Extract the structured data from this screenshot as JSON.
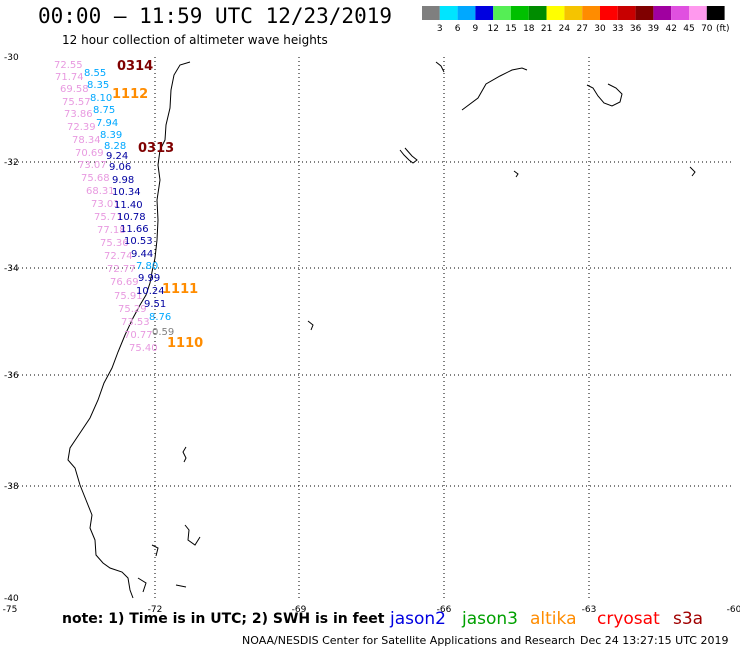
{
  "title": "00:00 – 11:59 UTC 12/23/2019",
  "subtitle": "12 hour collection of altimeter wave heights",
  "legend": {
    "unit": "(ft)",
    "bins": [
      {
        "label": "3",
        "color": "#7f7f7f"
      },
      {
        "label": "6",
        "color": "#00e5ff"
      },
      {
        "label": "9",
        "color": "#00a8ff"
      },
      {
        "label": "12",
        "color": "#0000e0"
      },
      {
        "label": "15",
        "color": "#55ee55"
      },
      {
        "label": "18",
        "color": "#00c000"
      },
      {
        "label": "21",
        "color": "#008c00"
      },
      {
        "label": "24",
        "color": "#ffff00"
      },
      {
        "label": "27",
        "color": "#f5c400"
      },
      {
        "label": "30",
        "color": "#ff8c00"
      },
      {
        "label": "33",
        "color": "#ff0000"
      },
      {
        "label": "36",
        "color": "#c80000"
      },
      {
        "label": "39",
        "color": "#7f0000"
      },
      {
        "label": "42",
        "color": "#a000a0"
      },
      {
        "label": "45",
        "color": "#e050e0"
      },
      {
        "label": "70",
        "color": "#ff99ee"
      },
      {
        "label": "",
        "color": "#000000"
      }
    ]
  },
  "axes": {
    "lat_labels": [
      "-30",
      "-32",
      "-34",
      "-36",
      "-38",
      "-40"
    ],
    "lon_labels": [
      "-75",
      "-72",
      "-69",
      "-66",
      "-63",
      "-60"
    ]
  },
  "observations": [
    {
      "value": "72.55",
      "color": "#e89ae0"
    },
    {
      "value": "71.74",
      "color": "#e89ae0"
    },
    {
      "value": "69.58",
      "color": "#e89ae0"
    },
    {
      "value": "75.57",
      "color": "#e89ae0"
    },
    {
      "value": "73.86",
      "color": "#e89ae0"
    },
    {
      "value": "72.39",
      "color": "#e89ae0"
    },
    {
      "value": "78.34",
      "color": "#e89ae0"
    },
    {
      "value": "70.69",
      "color": "#e89ae0"
    },
    {
      "value": "73.07",
      "color": "#e89ae0"
    },
    {
      "value": "75.68",
      "color": "#e89ae0"
    },
    {
      "value": "68.31",
      "color": "#e89ae0"
    },
    {
      "value": "73.01",
      "color": "#e89ae0"
    },
    {
      "value": "75.71",
      "color": "#e89ae0"
    },
    {
      "value": "77.18",
      "color": "#e89ae0"
    },
    {
      "value": "75.36",
      "color": "#e89ae0"
    },
    {
      "value": "72.74",
      "color": "#e89ae0"
    },
    {
      "value": "72.77",
      "color": "#e89ae0"
    },
    {
      "value": "76.69",
      "color": "#e89ae0"
    },
    {
      "value": "75.91",
      "color": "#e89ae0"
    },
    {
      "value": "75.29",
      "color": "#e89ae0"
    },
    {
      "value": "73.53",
      "color": "#e89ae0"
    },
    {
      "value": "70.77",
      "color": "#e89ae0"
    },
    {
      "value": "75.40",
      "color": "#e89ae0"
    },
    {
      "value": "8.55",
      "color": "#00a8ff"
    },
    {
      "value": "8.35",
      "color": "#00a8ff"
    },
    {
      "value": "8.10",
      "color": "#00a8ff"
    },
    {
      "value": "8.75",
      "color": "#00a8ff"
    },
    {
      "value": "7.94",
      "color": "#00a8ff"
    },
    {
      "value": "8.39",
      "color": "#00a8ff"
    },
    {
      "value": "8.28",
      "color": "#00a8ff"
    },
    {
      "value": "9.24",
      "color": "#0000a0"
    },
    {
      "value": "9.06",
      "color": "#0000a0"
    },
    {
      "value": "9.98",
      "color": "#0000a0"
    },
    {
      "value": "10.34",
      "color": "#0000a0"
    },
    {
      "value": "11.40",
      "color": "#0000a0"
    },
    {
      "value": "10.78",
      "color": "#0000a0"
    },
    {
      "value": "11.66",
      "color": "#0000a0"
    },
    {
      "value": "10.53",
      "color": "#0000a0"
    },
    {
      "value": "9.44",
      "color": "#0000a0"
    },
    {
      "value": "7.80",
      "color": "#00a8ff"
    },
    {
      "value": "9.99",
      "color": "#0000a0"
    },
    {
      "value": "10.24",
      "color": "#0000a0"
    },
    {
      "value": "9.51",
      "color": "#0000a0"
    },
    {
      "value": "8.76",
      "color": "#00a8ff"
    },
    {
      "value": "0.59",
      "color": "#7f7f7f"
    }
  ],
  "pass_times": [
    {
      "label": "0314",
      "color": "#7f0000"
    },
    {
      "label": "1112",
      "color": "#ff8c00"
    },
    {
      "label": "0313",
      "color": "#7f0000"
    },
    {
      "label": "1111",
      "color": "#ff8c00"
    },
    {
      "label": "1110",
      "color": "#ff8c00"
    }
  ],
  "footer": {
    "note": "note:  1) Time is in UTC;  2) SWH is in feet",
    "satellites": [
      {
        "name": "jason2",
        "color": "#0000e0"
      },
      {
        "name": "jason3",
        "color": "#00a000"
      },
      {
        "name": "altika",
        "color": "#ff8c00"
      },
      {
        "name": "cryosat",
        "color": "#ff0000"
      },
      {
        "name": "s3a",
        "color": "#a00000"
      }
    ],
    "credit": "NOAA/NESDIS Center for Satellite Applications and Research",
    "timestamp": "Dec 24 13:27:15 UTC 2019"
  }
}
